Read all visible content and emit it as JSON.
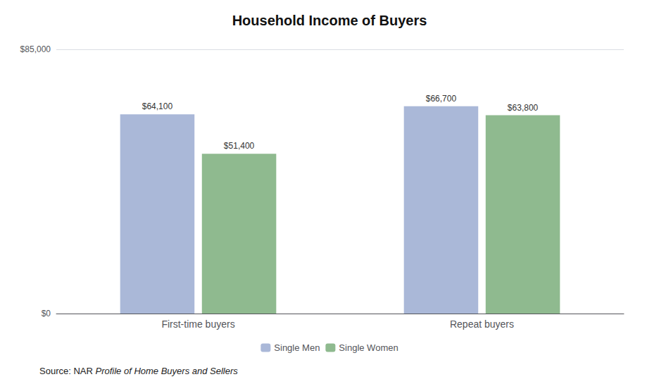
{
  "chart_data": {
    "type": "bar",
    "title": "Household Income of Buyers",
    "categories": [
      "First-time buyers",
      "Repeat buyers"
    ],
    "series": [
      {
        "name": "Single Men",
        "color": "#aab8d8",
        "values": [
          64100,
          66700
        ],
        "value_labels": [
          "$64,100",
          "$66,700"
        ]
      },
      {
        "name": "Single Women",
        "color": "#8fba8f",
        "values": [
          51400,
          63800
        ],
        "value_labels": [
          "$51,400",
          "$63,800"
        ]
      }
    ],
    "ylim": [
      0,
      85000
    ],
    "yticks": [
      {
        "value": 0,
        "label": "$0"
      },
      {
        "value": 85000,
        "label": "$85,000"
      }
    ],
    "grid": true,
    "legend": "bottom",
    "data_labels": true,
    "annotations": [
      "Source: NAR",
      "Profile of Home Buyers and Sellers"
    ]
  }
}
